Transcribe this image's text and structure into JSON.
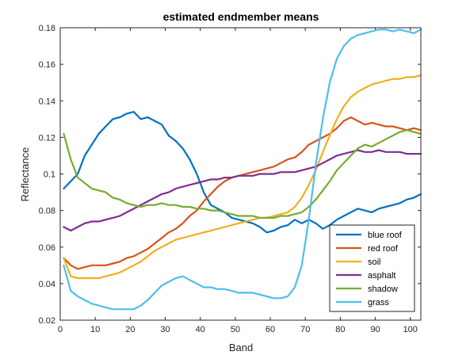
{
  "chart_data": {
    "type": "line",
    "title": "estimated endmember means",
    "xlabel": "Band",
    "ylabel": "Reflectance",
    "xlim": [
      0,
      103
    ],
    "ylim": [
      0.02,
      0.18
    ],
    "xticks": [
      0,
      10,
      20,
      30,
      40,
      50,
      60,
      70,
      80,
      90,
      100
    ],
    "yticks": [
      0.02,
      0.04,
      0.06,
      0.08,
      0.1,
      0.12,
      0.14,
      0.16,
      0.18
    ],
    "xtick_labels": [
      "0",
      "10",
      "20",
      "30",
      "40",
      "50",
      "60",
      "70",
      "80",
      "90",
      "100"
    ],
    "ytick_labels": [
      "0.02",
      "0.04",
      "0.06",
      "0.08",
      "0.1",
      "0.12",
      "0.14",
      "0.16",
      "0.18"
    ],
    "grid": false,
    "legend_position": "bottom-right",
    "series": [
      {
        "name": "blue roof",
        "color": "#0072BD",
        "x": [
          1,
          3,
          5,
          7,
          9,
          11,
          13,
          15,
          17,
          19,
          21,
          23,
          25,
          27,
          29,
          31,
          33,
          35,
          37,
          39,
          41,
          43,
          45,
          47,
          49,
          51,
          53,
          55,
          57,
          59,
          61,
          63,
          65,
          67,
          69,
          71,
          73,
          75,
          77,
          79,
          81,
          83,
          85,
          87,
          89,
          91,
          93,
          95,
          97,
          99,
          101,
          103
        ],
        "y": [
          0.092,
          0.096,
          0.1,
          0.11,
          0.116,
          0.122,
          0.126,
          0.13,
          0.131,
          0.133,
          0.134,
          0.13,
          0.131,
          0.129,
          0.127,
          0.121,
          0.118,
          0.114,
          0.108,
          0.1,
          0.09,
          0.083,
          0.081,
          0.079,
          0.076,
          0.075,
          0.074,
          0.073,
          0.071,
          0.068,
          0.069,
          0.071,
          0.072,
          0.075,
          0.073,
          0.075,
          0.073,
          0.07,
          0.072,
          0.075,
          0.077,
          0.079,
          0.081,
          0.08,
          0.079,
          0.081,
          0.082,
          0.083,
          0.084,
          0.086,
          0.087,
          0.089
        ]
      },
      {
        "name": "red roof",
        "color": "#D95319",
        "x": [
          1,
          3,
          5,
          7,
          9,
          11,
          13,
          15,
          17,
          19,
          21,
          23,
          25,
          27,
          29,
          31,
          33,
          35,
          37,
          39,
          41,
          43,
          45,
          47,
          49,
          51,
          53,
          55,
          57,
          59,
          61,
          63,
          65,
          67,
          69,
          71,
          73,
          75,
          77,
          79,
          81,
          83,
          85,
          87,
          89,
          91,
          93,
          95,
          97,
          99,
          101,
          103
        ],
        "y": [
          0.054,
          0.05,
          0.048,
          0.049,
          0.05,
          0.05,
          0.05,
          0.051,
          0.052,
          0.054,
          0.055,
          0.057,
          0.059,
          0.062,
          0.065,
          0.068,
          0.07,
          0.073,
          0.077,
          0.08,
          0.085,
          0.089,
          0.093,
          0.096,
          0.098,
          0.099,
          0.1,
          0.101,
          0.102,
          0.103,
          0.104,
          0.106,
          0.108,
          0.109,
          0.112,
          0.116,
          0.118,
          0.12,
          0.122,
          0.125,
          0.129,
          0.131,
          0.129,
          0.127,
          0.128,
          0.127,
          0.126,
          0.126,
          0.125,
          0.124,
          0.125,
          0.124
        ]
      },
      {
        "name": "soil",
        "color": "#EDB120",
        "x": [
          1,
          3,
          5,
          7,
          9,
          11,
          13,
          15,
          17,
          19,
          21,
          23,
          25,
          27,
          29,
          31,
          33,
          35,
          37,
          39,
          41,
          43,
          45,
          47,
          49,
          51,
          53,
          55,
          57,
          59,
          61,
          63,
          65,
          67,
          69,
          71,
          73,
          75,
          77,
          79,
          81,
          83,
          85,
          87,
          89,
          91,
          93,
          95,
          97,
          99,
          101,
          103
        ],
        "y": [
          0.054,
          0.044,
          0.043,
          0.043,
          0.043,
          0.043,
          0.044,
          0.045,
          0.046,
          0.048,
          0.05,
          0.052,
          0.055,
          0.058,
          0.06,
          0.062,
          0.064,
          0.065,
          0.066,
          0.067,
          0.068,
          0.069,
          0.07,
          0.071,
          0.072,
          0.073,
          0.074,
          0.075,
          0.076,
          0.076,
          0.077,
          0.078,
          0.079,
          0.082,
          0.087,
          0.094,
          0.102,
          0.112,
          0.121,
          0.13,
          0.137,
          0.142,
          0.145,
          0.147,
          0.149,
          0.15,
          0.151,
          0.152,
          0.152,
          0.153,
          0.153,
          0.154
        ]
      },
      {
        "name": "asphalt",
        "color": "#7E2F8E",
        "x": [
          1,
          3,
          5,
          7,
          9,
          11,
          13,
          15,
          17,
          19,
          21,
          23,
          25,
          27,
          29,
          31,
          33,
          35,
          37,
          39,
          41,
          43,
          45,
          47,
          49,
          51,
          53,
          55,
          57,
          59,
          61,
          63,
          65,
          67,
          69,
          71,
          73,
          75,
          77,
          79,
          81,
          83,
          85,
          87,
          89,
          91,
          93,
          95,
          97,
          99,
          101,
          103
        ],
        "y": [
          0.071,
          0.069,
          0.071,
          0.073,
          0.074,
          0.074,
          0.075,
          0.076,
          0.077,
          0.079,
          0.081,
          0.083,
          0.085,
          0.087,
          0.089,
          0.09,
          0.092,
          0.093,
          0.094,
          0.095,
          0.096,
          0.097,
          0.097,
          0.098,
          0.098,
          0.099,
          0.099,
          0.099,
          0.1,
          0.1,
          0.1,
          0.101,
          0.101,
          0.101,
          0.102,
          0.103,
          0.104,
          0.106,
          0.108,
          0.11,
          0.111,
          0.112,
          0.113,
          0.112,
          0.112,
          0.113,
          0.112,
          0.112,
          0.112,
          0.111,
          0.111,
          0.111
        ]
      },
      {
        "name": "shadow",
        "color": "#77AC30",
        "x": [
          1,
          3,
          5,
          7,
          9,
          11,
          13,
          15,
          17,
          19,
          21,
          23,
          25,
          27,
          29,
          31,
          33,
          35,
          37,
          39,
          41,
          43,
          45,
          47,
          49,
          51,
          53,
          55,
          57,
          59,
          61,
          63,
          65,
          67,
          69,
          71,
          73,
          75,
          77,
          79,
          81,
          83,
          85,
          87,
          89,
          91,
          93,
          95,
          97,
          99,
          101,
          103
        ],
        "y": [
          0.122,
          0.108,
          0.098,
          0.095,
          0.092,
          0.091,
          0.09,
          0.087,
          0.086,
          0.084,
          0.083,
          0.082,
          0.083,
          0.083,
          0.084,
          0.083,
          0.083,
          0.082,
          0.082,
          0.081,
          0.081,
          0.08,
          0.08,
          0.079,
          0.078,
          0.077,
          0.077,
          0.077,
          0.076,
          0.076,
          0.076,
          0.077,
          0.077,
          0.078,
          0.079,
          0.082,
          0.086,
          0.091,
          0.096,
          0.102,
          0.106,
          0.11,
          0.114,
          0.116,
          0.115,
          0.117,
          0.119,
          0.121,
          0.123,
          0.124,
          0.123,
          0.122
        ]
      },
      {
        "name": "grass",
        "color": "#4DBEEE",
        "x": [
          1,
          3,
          5,
          7,
          9,
          11,
          13,
          15,
          17,
          19,
          21,
          23,
          25,
          27,
          29,
          31,
          33,
          35,
          37,
          39,
          41,
          43,
          45,
          47,
          49,
          51,
          53,
          55,
          57,
          59,
          61,
          63,
          65,
          67,
          69,
          71,
          73,
          75,
          77,
          79,
          81,
          83,
          85,
          87,
          89,
          91,
          93,
          95,
          97,
          99,
          101,
          103
        ],
        "y": [
          0.05,
          0.036,
          0.033,
          0.031,
          0.029,
          0.028,
          0.027,
          0.026,
          0.026,
          0.026,
          0.026,
          0.028,
          0.031,
          0.035,
          0.039,
          0.041,
          0.043,
          0.044,
          0.042,
          0.04,
          0.038,
          0.038,
          0.037,
          0.037,
          0.036,
          0.035,
          0.035,
          0.035,
          0.034,
          0.033,
          0.032,
          0.032,
          0.033,
          0.038,
          0.05,
          0.075,
          0.105,
          0.13,
          0.15,
          0.163,
          0.17,
          0.174,
          0.176,
          0.177,
          0.178,
          0.179,
          0.179,
          0.178,
          0.179,
          0.178,
          0.177,
          0.179
        ]
      }
    ]
  }
}
